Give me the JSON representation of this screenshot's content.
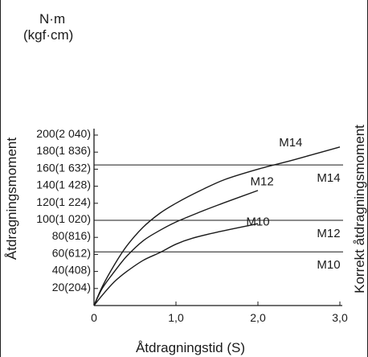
{
  "units": {
    "primary": "N·m",
    "secondary": "(kgf·cm)"
  },
  "chart_data": {
    "type": "line",
    "xlabel": "Åtdragningstid (S)",
    "ylabel": "Åtdragningsmoment",
    "right_label": "Korrekt åtdragningsmoment",
    "xlim": [
      0,
      3.0
    ],
    "ylim": [
      0,
      200
    ],
    "x_ticks": [
      {
        "v": 0,
        "label": "0"
      },
      {
        "v": 1.0,
        "label": "1,0"
      },
      {
        "v": 2.0,
        "label": "2,0"
      },
      {
        "v": 3.0,
        "label": "3,0"
      }
    ],
    "y_ticks": [
      {
        "v": 20,
        "label": "20(204)"
      },
      {
        "v": 40,
        "label": "40(408)"
      },
      {
        "v": 60,
        "label": "60(612)"
      },
      {
        "v": 80,
        "label": "80(816)"
      },
      {
        "v": 100,
        "label": "100(1 020)"
      },
      {
        "v": 120,
        "label": "120(1 224)"
      },
      {
        "v": 140,
        "label": "140(1 428)"
      },
      {
        "v": 160,
        "label": "160(1 632)"
      },
      {
        "v": 180,
        "label": "180(1 836)"
      },
      {
        "v": 200,
        "label": "200(2 040)"
      }
    ],
    "series": [
      {
        "name": "M14",
        "label_at": [
          2.4,
          187
        ],
        "points": [
          [
            0,
            0
          ],
          [
            0.1,
            22
          ],
          [
            0.25,
            48
          ],
          [
            0.4,
            70
          ],
          [
            0.6,
            92
          ],
          [
            0.8,
            108
          ],
          [
            1.0,
            120
          ],
          [
            1.3,
            135
          ],
          [
            1.6,
            148
          ],
          [
            2.0,
            160
          ],
          [
            2.4,
            170
          ],
          [
            2.7,
            178
          ],
          [
            3.0,
            186
          ]
        ]
      },
      {
        "name": "M12",
        "label_at": [
          2.05,
          141
        ],
        "points": [
          [
            0,
            0
          ],
          [
            0.1,
            20
          ],
          [
            0.25,
            40
          ],
          [
            0.4,
            58
          ],
          [
            0.6,
            76
          ],
          [
            0.8,
            88
          ],
          [
            1.0,
            98
          ],
          [
            1.3,
            110
          ],
          [
            1.6,
            121
          ],
          [
            2.0,
            135
          ]
        ]
      },
      {
        "name": "M10",
        "label_at": [
          2.0,
          94
        ],
        "points": [
          [
            0,
            0
          ],
          [
            0.1,
            12
          ],
          [
            0.25,
            28
          ],
          [
            0.4,
            40
          ],
          [
            0.6,
            53
          ],
          [
            0.8,
            62
          ],
          [
            1.0,
            72
          ],
          [
            1.2,
            79
          ],
          [
            1.5,
            86
          ],
          [
            2.0,
            96
          ]
        ]
      }
    ],
    "reference_lines": [
      {
        "name": "M14",
        "value": 165
      },
      {
        "name": "M12",
        "value": 100
      },
      {
        "name": "M10",
        "value": 63
      }
    ]
  }
}
